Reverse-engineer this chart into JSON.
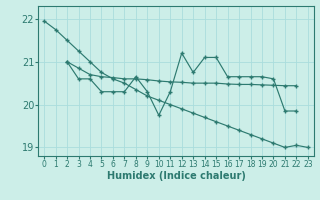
{
  "xlabel": "Humidex (Indice chaleur)",
  "bg_color": "#cceee8",
  "grid_color": "#aadddd",
  "line_color": "#2d7a70",
  "xlim": [
    -0.5,
    23.5
  ],
  "ylim": [
    18.8,
    22.3
  ],
  "yticks": [
    19,
    20,
    21,
    22
  ],
  "xticks": [
    0,
    1,
    2,
    3,
    4,
    5,
    6,
    7,
    8,
    9,
    10,
    11,
    12,
    13,
    14,
    15,
    16,
    17,
    18,
    19,
    20,
    21,
    22,
    23
  ],
  "line1_x": [
    0,
    1,
    2,
    3,
    4,
    5,
    6,
    7,
    8,
    9,
    10,
    11,
    12,
    13,
    14,
    15,
    16,
    17,
    18,
    19,
    20,
    21,
    22,
    23
  ],
  "line1_y": [
    21.95,
    21.75,
    21.5,
    21.25,
    21.0,
    20.75,
    20.6,
    20.5,
    20.35,
    20.2,
    20.1,
    20.0,
    19.9,
    19.8,
    19.7,
    19.6,
    19.5,
    19.4,
    19.3,
    19.2,
    19.1,
    19.0,
    19.05,
    19.0
  ],
  "line2_x": [
    2,
    3,
    4,
    5,
    6,
    7,
    8,
    9,
    10,
    11,
    12,
    13,
    14,
    15,
    16,
    17,
    18,
    19,
    20,
    21,
    22
  ],
  "line2_y": [
    21.0,
    20.85,
    20.7,
    20.65,
    20.63,
    20.6,
    20.6,
    20.58,
    20.55,
    20.53,
    20.52,
    20.5,
    20.5,
    20.5,
    20.48,
    20.47,
    20.47,
    20.46,
    20.45,
    20.44,
    20.44
  ],
  "line3_x": [
    2,
    3,
    4,
    5,
    6,
    7,
    8,
    9,
    10,
    11,
    12,
    13,
    14,
    15,
    16,
    17,
    18,
    19,
    20,
    21,
    22
  ],
  "line3_y": [
    21.0,
    20.6,
    20.6,
    20.3,
    20.3,
    20.3,
    20.65,
    20.3,
    19.75,
    20.3,
    21.2,
    20.75,
    21.1,
    21.1,
    20.65,
    20.65,
    20.65,
    20.65,
    20.6,
    19.85,
    19.85
  ]
}
